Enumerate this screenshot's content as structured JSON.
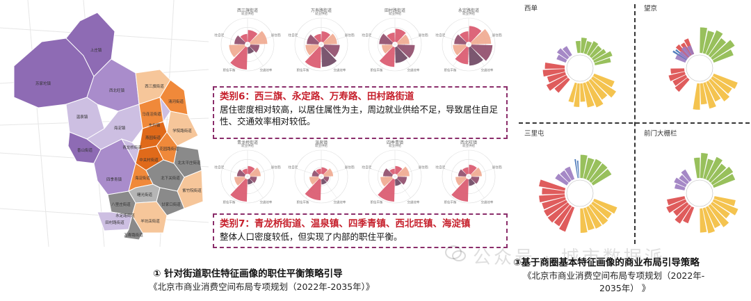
{
  "map": {
    "district_labels": [
      "苏家坨镇",
      "上庄镇",
      "西北旺镇",
      "温泉镇",
      "香山街道",
      "四季青镇",
      "海淀镇",
      "西三旗街道",
      "清河街道",
      "马连洼街道",
      "东升镇",
      "学院路街道",
      "青龙桥街道",
      "燕园街道",
      "中关村街道",
      "海淀街道",
      "花园路街道",
      "北太平庄街道",
      "北下关街道",
      "曙光街道",
      "八里庄街道",
      "甘家口街道",
      "田村路街道",
      "永定路街道",
      "羊坊店街道",
      "万寿路街道",
      "紫竹院街道"
    ],
    "colors": {
      "purple_dark": "#8e6bb4",
      "purple_mid": "#a98ccb",
      "purple_light": "#cdbfe2",
      "orange": "#f0893a",
      "orange_light": "#f6c69a",
      "orange_dark": "#e06a1a",
      "gray": "#8a8a8a",
      "gray_light": "#b5b5b5"
    }
  },
  "radar": {
    "row1_names": [
      "西三旗街道",
      "万寿路街道",
      "田村路街道",
      "永定路街道"
    ],
    "row2_names": [
      "青龙桥街道",
      "温泉镇",
      "四季青镇",
      "西北旺镇"
    ],
    "axis_labels": [
      "就业供给",
      "居住密度",
      "交通效率",
      "职住平衡",
      "居住自足"
    ],
    "colors": {
      "pink": "#d9556c",
      "salmon": "#f0a88f",
      "mauve": "#8f4a69",
      "dark_purple": "#6d4560"
    }
  },
  "strategy6": {
    "title": "类别6：西三旗、永定路、万寿路、田村路街道",
    "desc": "居住密度相对较高，以居住属性为主，周边就业供给不足，导致居住自足性、交通效率相对较低。"
  },
  "strategy7": {
    "title": "类别7：青龙桥街道、温泉镇、四季青镇、西北旺镇、海淀镇",
    "desc": "整体人口密度较低，但实现了内部的职住平衡。"
  },
  "right": {
    "quads": [
      "西单",
      "望京",
      "三里屯",
      "前门大栅栏"
    ],
    "colors": {
      "green": "#8db94a",
      "yellow": "#f3bd3c",
      "red": "#dc4a4a",
      "purple": "#9b7bc0",
      "blue": "#3f6fb5"
    }
  },
  "captions": {
    "left_title": "① 针对街道职住特征画像的职住平衡策略引导",
    "left_source": "《北京市商业消费空间布局专项规划（2022年-2035年）》",
    "right_title": "③基于商圈基本特征画像的商业布局引导策略",
    "right_source_1": "《北京市商业消费空间布局专项规划（2022年-",
    "right_source_2": "2035年）  》",
    "watermark": "公众号 · 城市数据派"
  }
}
